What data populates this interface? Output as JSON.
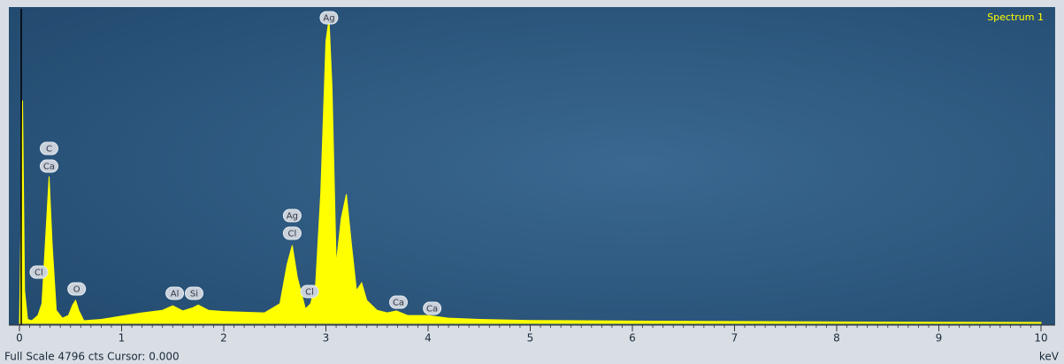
{
  "chart_data": {
    "type": "area",
    "series": [
      {
        "name": "Spectrum 1",
        "color": "#ffff00",
        "x": [
          0,
          0.02,
          0.03,
          0.05,
          0.08,
          0.12,
          0.18,
          0.22,
          0.26,
          0.29,
          0.32,
          0.36,
          0.42,
          0.48,
          0.52,
          0.55,
          0.58,
          0.63,
          0.8,
          1.0,
          1.2,
          1.4,
          1.5,
          1.6,
          1.7,
          1.75,
          1.85,
          2.0,
          2.2,
          2.4,
          2.55,
          2.62,
          2.67,
          2.72,
          2.8,
          2.85,
          2.9,
          2.95,
          3.0,
          3.03,
          3.06,
          3.1,
          3.15,
          3.2,
          3.25,
          3.3,
          3.35,
          3.4,
          3.5,
          3.6,
          3.69,
          3.8,
          4.0,
          4.2,
          4.5,
          5,
          6,
          7,
          8,
          9,
          10
        ],
        "values": [
          0,
          2000,
          3400,
          500,
          60,
          40,
          120,
          300,
          1400,
          2240,
          1200,
          200,
          80,
          120,
          280,
          350,
          200,
          40,
          60,
          110,
          160,
          200,
          270,
          190,
          240,
          280,
          200,
          180,
          170,
          160,
          300,
          900,
          1190,
          700,
          220,
          300,
          600,
          2000,
          4300,
          4640,
          3600,
          900,
          1600,
          1970,
          1200,
          500,
          620,
          350,
          200,
          160,
          190,
          120,
          120,
          80,
          60,
          45,
          35,
          28,
          22,
          18,
          15
        ]
      }
    ],
    "annotations": [
      {
        "text": "Ag",
        "x": 3.03,
        "y": 4660
      },
      {
        "text": "C",
        "x": 0.29,
        "y": 2667
      },
      {
        "text": "Ca",
        "x": 0.29,
        "y": 2398
      },
      {
        "text": "Cl",
        "x": 0.19,
        "y": 781
      },
      {
        "text": "O",
        "x": 0.56,
        "y": 525
      },
      {
        "text": "Al",
        "x": 1.52,
        "y": 458
      },
      {
        "text": "Si",
        "x": 1.71,
        "y": 458
      },
      {
        "text": "Ag",
        "x": 2.67,
        "y": 1643
      },
      {
        "text": "Cl",
        "x": 2.67,
        "y": 1374
      },
      {
        "text": "Cl",
        "x": 2.84,
        "y": 485
      },
      {
        "text": "Ca",
        "x": 3.71,
        "y": 323
      },
      {
        "text": "Ca",
        "x": 4.04,
        "y": 229
      }
    ],
    "xlim": [
      0,
      10
    ],
    "xticks": [
      0,
      1,
      2,
      3,
      4,
      5,
      6,
      7,
      8,
      9,
      10
    ],
    "ylim": [
      0,
      4796
    ],
    "x_label": "keV",
    "status": "Full Scale 4796 cts Cursor: 0.000"
  }
}
